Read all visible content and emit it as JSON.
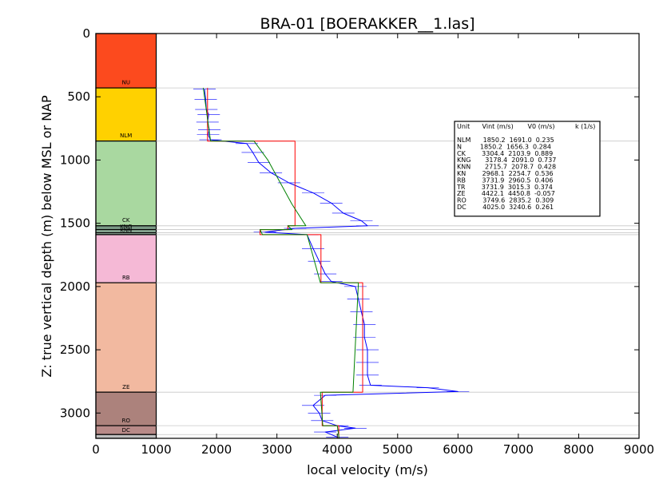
{
  "chart_data": {
    "type": "line",
    "title": "BRA-01 [BOERAKKER__1.las]",
    "xlabel": "local velocity (m/s)",
    "ylabel": "Z: true vertical depth (m) below MSL or NAP",
    "xlim": [
      0,
      9000
    ],
    "ylim": [
      3200,
      0
    ],
    "x_ticks": [
      "0",
      "1000",
      "2000",
      "3000",
      "4000",
      "5000",
      "6000",
      "7000",
      "8000",
      "9000"
    ],
    "y_ticks": [
      "0",
      "500",
      "1000",
      "1500",
      "2000",
      "2500",
      "3000"
    ],
    "units": [
      {
        "label": "NU",
        "top": 0,
        "base": 430,
        "color": "#fc4a1e"
      },
      {
        "label": "NLM",
        "top": 430,
        "base": 850,
        "color": "#ffd100"
      },
      {
        "label": "CK",
        "top": 850,
        "base": 1520,
        "color": "#a9d8a0"
      },
      {
        "label": "KNG",
        "top": 1520,
        "base": 1550,
        "color": "#7a9a86"
      },
      {
        "label": "KNN",
        "top": 1550,
        "base": 1575,
        "color": "#8dac98"
      },
      {
        "label": "",
        "top": 1575,
        "base": 1590,
        "color": "#9cb8a6"
      },
      {
        "label": "RB",
        "top": 1590,
        "base": 1970,
        "color": "#f5b9d6"
      },
      {
        "label": "",
        "top": 1970,
        "base": 2835,
        "color": "#f2b9a0"
      },
      {
        "label": "ZE",
        "top": 2835,
        "base": 3100,
        "color": "#ac827c"
      },
      {
        "label": "RO",
        "top": 3100,
        "base": 3170,
        "color": "#b88a88"
      },
      {
        "label": "DC",
        "top": 3170,
        "base": 3200,
        "color": "#bfbfbf"
      }
    ],
    "unit_labels": [
      {
        "text": "NU",
        "depth": 400
      },
      {
        "text": "NLM",
        "depth": 820
      },
      {
        "text": "CK",
        "depth": 1490
      },
      {
        "text": "KNG",
        "depth": 1540
      },
      {
        "text": "KNN",
        "depth": 1568
      },
      {
        "text": "RB",
        "depth": 1945
      },
      {
        "text": "ZE",
        "depth": 2810
      },
      {
        "text": "RO",
        "depth": 3075
      },
      {
        "text": "DC",
        "depth": 3150
      }
    ],
    "boundaries": [
      430,
      850,
      1520,
      1550,
      1575,
      1590,
      1970,
      2835,
      3100,
      3170
    ],
    "series": [
      {
        "color": "#0000ff",
        "style": "sonic-log",
        "points": [
          [
            1800,
            440
          ],
          [
            1820,
            520
          ],
          [
            1830,
            600
          ],
          [
            1870,
            640
          ],
          [
            1850,
            700
          ],
          [
            1880,
            760
          ],
          [
            1860,
            800
          ],
          [
            1900,
            840
          ],
          [
            2500,
            870
          ],
          [
            2600,
            940
          ],
          [
            2700,
            1020
          ],
          [
            2900,
            1100
          ],
          [
            3200,
            1180
          ],
          [
            3600,
            1260
          ],
          [
            3900,
            1340
          ],
          [
            4100,
            1420
          ],
          [
            4400,
            1480
          ],
          [
            4500,
            1520
          ],
          [
            3300,
            1540
          ],
          [
            2800,
            1570
          ],
          [
            3500,
            1590
          ],
          [
            3600,
            1700
          ],
          [
            3700,
            1800
          ],
          [
            3800,
            1900
          ],
          [
            3900,
            1960
          ],
          [
            4300,
            2000
          ],
          [
            4350,
            2100
          ],
          [
            4400,
            2200
          ],
          [
            4450,
            2300
          ],
          [
            4450,
            2400
          ],
          [
            4500,
            2500
          ],
          [
            4500,
            2600
          ],
          [
            4500,
            2700
          ],
          [
            4550,
            2780
          ],
          [
            5500,
            2800
          ],
          [
            6000,
            2830
          ],
          [
            3800,
            2860
          ],
          [
            3600,
            2940
          ],
          [
            3700,
            3000
          ],
          [
            3750,
            3060
          ],
          [
            4000,
            3100
          ],
          [
            4300,
            3120
          ],
          [
            3800,
            3150
          ],
          [
            4000,
            3190
          ]
        ]
      },
      {
        "color": "#ff0000",
        "style": "step",
        "points": [
          [
            1850,
            430
          ],
          [
            1850,
            850
          ],
          [
            3300,
            850
          ],
          [
            3300,
            1520
          ],
          [
            3180,
            1520
          ],
          [
            3180,
            1550
          ],
          [
            2720,
            1550
          ],
          [
            2720,
            1590
          ],
          [
            3730,
            1590
          ],
          [
            3730,
            1970
          ],
          [
            4420,
            1970
          ],
          [
            4420,
            2835
          ],
          [
            3750,
            2835
          ],
          [
            3750,
            3100
          ],
          [
            4025,
            3100
          ],
          [
            4025,
            3200
          ]
        ]
      },
      {
        "color": "#008000",
        "style": "linear-trend",
        "points": [
          [
            1780,
            430
          ],
          [
            1900,
            850
          ],
          [
            2620,
            850
          ],
          [
            2850,
            1000
          ],
          [
            3250,
            1350
          ],
          [
            3480,
            1520
          ],
          [
            3180,
            1520
          ],
          [
            3250,
            1550
          ],
          [
            2720,
            1550
          ],
          [
            2760,
            1590
          ],
          [
            3500,
            1590
          ],
          [
            3720,
            1970
          ],
          [
            4350,
            1970
          ],
          [
            4260,
            2835
          ],
          [
            3720,
            2835
          ],
          [
            3760,
            3100
          ],
          [
            4000,
            3100
          ],
          [
            4030,
            3200
          ]
        ]
      }
    ],
    "legend": {
      "placement": "right",
      "header": "Unit      Vint (m/s)       V0 (m/s)          k (1/s)",
      "rows": [
        "NLM      1850.2  1691.0  0.235",
        "N         1850.2  1656.3  0.284",
        "CK        3304.4  2103.9  0.889",
        "KNG       3178.4  2091.0  0.737",
        "KNN       2715.7  2078.7  0.428",
        "KN        2968.1  2254.7  0.536",
        "RB        3731.9  2960.5  0.406",
        "TR        3731.9  3015.3  0.374",
        "ZE        4422.1  4450.8  -0.057",
        "RO        3749.6  2835.2  0.309",
        "DC        4025.0  3240.6  0.261"
      ]
    }
  }
}
